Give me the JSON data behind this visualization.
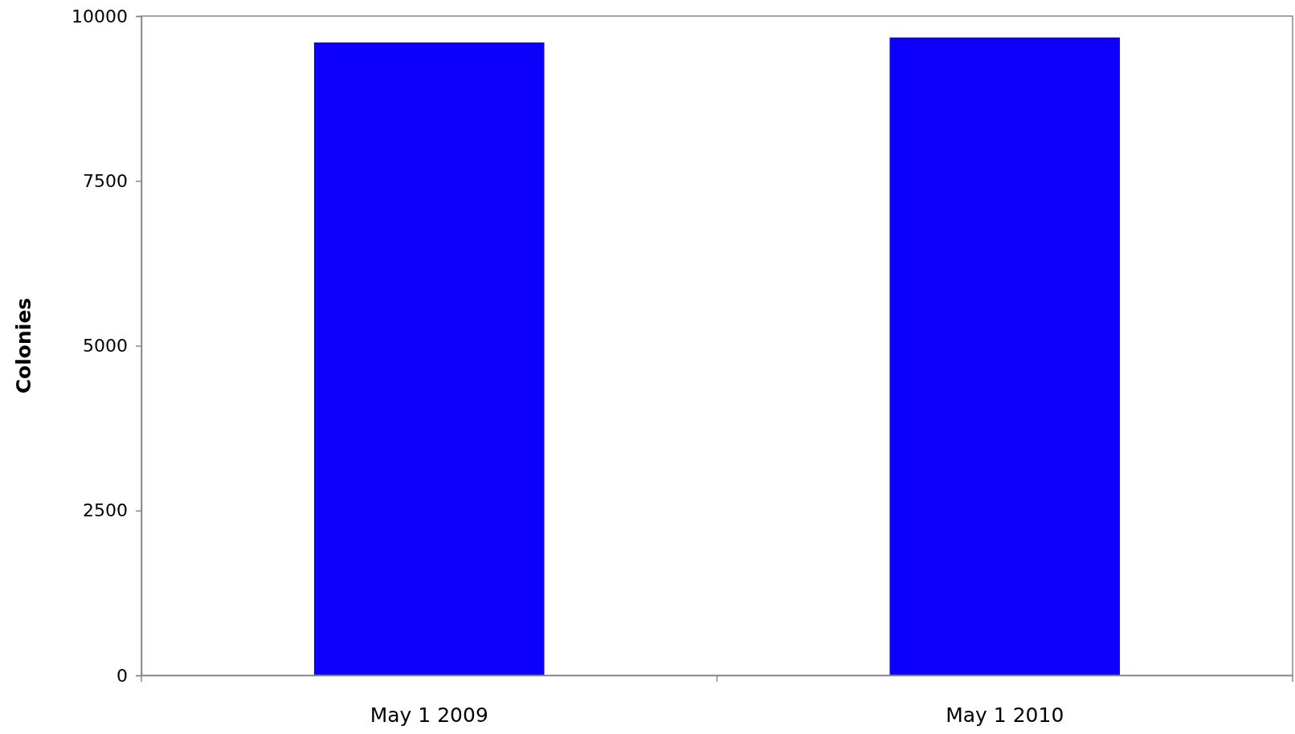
{
  "chart_data": {
    "type": "bar",
    "ylabel": "Colonies",
    "categories": [
      "May 1 2009",
      "May 1 2010"
    ],
    "values": [
      9600,
      9675
    ],
    "color": "#0c00fa",
    "ylim": [
      0,
      10000
    ],
    "yticks": [
      0,
      2500,
      5000,
      7500,
      10000
    ],
    "grid": false
  }
}
